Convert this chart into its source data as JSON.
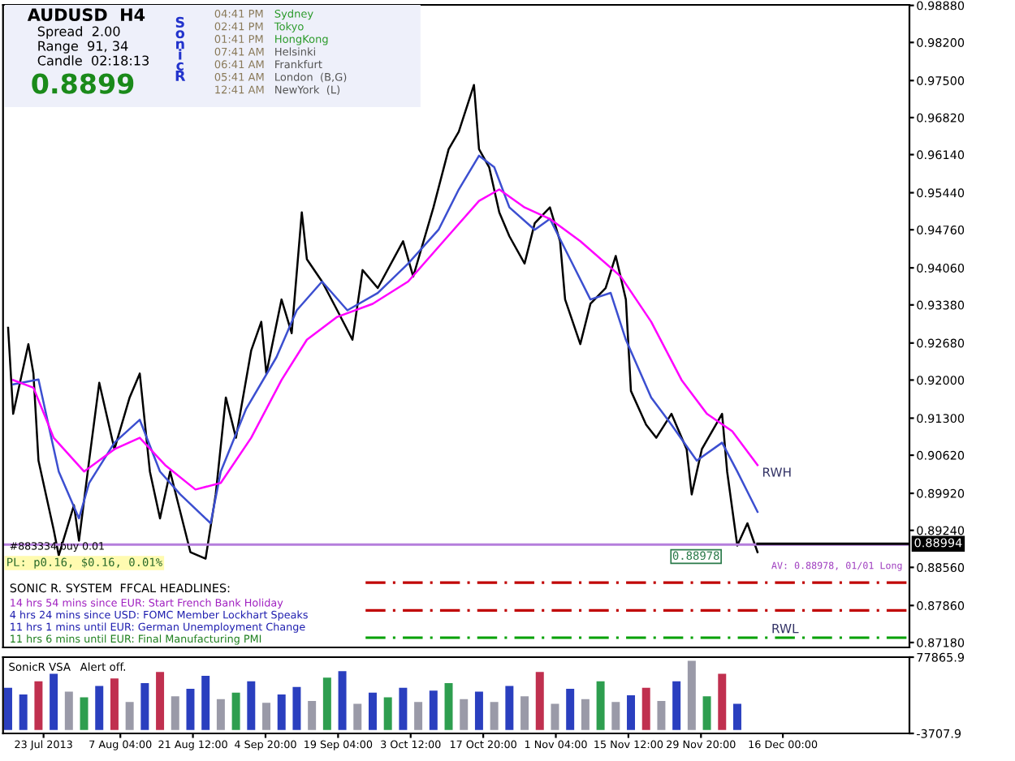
{
  "chart_data": [
    {
      "type": "line",
      "title": "AUDUSD  H4",
      "xlim": [
        "2013-07-15",
        "2014-01-10"
      ],
      "ylim": [
        0.8709,
        0.9889
      ],
      "tick_labels": "y",
      "grid": false,
      "legend": false,
      "marker": "none",
      "line_style": "solid",
      "yticks": [
        {
          "value": 0.9888,
          "label": "0.98880"
        },
        {
          "value": 0.982,
          "label": "0.98200"
        },
        {
          "value": 0.975,
          "label": "0.97500"
        },
        {
          "value": 0.9682,
          "label": "0.96820"
        },
        {
          "value": 0.9614,
          "label": "0.96140"
        },
        {
          "value": 0.9544,
          "label": "0.95440"
        },
        {
          "value": 0.9476,
          "label": "0.94760"
        },
        {
          "value": 0.9406,
          "label": "0.94060"
        },
        {
          "value": 0.9338,
          "label": "0.93380"
        },
        {
          "value": 0.9268,
          "label": "0.92680"
        },
        {
          "value": 0.92,
          "label": "0.92000"
        },
        {
          "value": 0.913,
          "label": "0.91300"
        },
        {
          "value": 0.9062,
          "label": "0.90620"
        },
        {
          "value": 0.8992,
          "label": "0.89920"
        },
        {
          "value": 0.8924,
          "label": "0.89240"
        },
        {
          "value": 0.8856,
          "label": "0.88560"
        },
        {
          "value": 0.8786,
          "label": "0.87860"
        },
        {
          "value": 0.8718,
          "label": "0.87180"
        }
      ],
      "series": [
        {
          "color": "#000000",
          "x": [
            "2013-07-16",
            "2013-07-17",
            "2013-07-20",
            "2013-07-21",
            "2013-07-22",
            "2013-07-25",
            "2013-07-26",
            "2013-07-29",
            "2013-07-30",
            "2013-08-01",
            "2013-08-03",
            "2013-08-06",
            "2013-08-09",
            "2013-08-11",
            "2013-08-13",
            "2013-08-15",
            "2013-08-17",
            "2013-08-21",
            "2013-08-24",
            "2013-08-26",
            "2013-08-28",
            "2013-08-30",
            "2013-09-02",
            "2013-09-04",
            "2013-09-05",
            "2013-09-08",
            "2013-09-10",
            "2013-09-12",
            "2013-09-13",
            "2013-09-16",
            "2013-09-19",
            "2013-09-22",
            "2013-09-24",
            "2013-09-27",
            "2013-10-02",
            "2013-10-04",
            "2013-10-08",
            "2013-10-11",
            "2013-10-13",
            "2013-10-16",
            "2013-10-17",
            "2013-10-19",
            "2013-10-21",
            "2013-10-23",
            "2013-10-26",
            "2013-10-28",
            "2013-10-31",
            "2013-11-02",
            "2013-11-03",
            "2013-11-06",
            "2013-11-08",
            "2013-11-11",
            "2013-11-13",
            "2013-11-15",
            "2013-11-16",
            "2013-11-19",
            "2013-11-21",
            "2013-11-24",
            "2013-11-27",
            "2013-11-28",
            "2013-11-30",
            "2013-12-04",
            "2013-12-05",
            "2013-12-07",
            "2013-12-09",
            "2013-12-11"
          ],
          "values": [
            0.9296,
            0.9138,
            0.9266,
            0.9212,
            0.9052,
            0.8925,
            0.8878,
            0.897,
            0.8905,
            0.9052,
            0.9195,
            0.9073,
            0.9168,
            0.9212,
            0.9032,
            0.8946,
            0.9032,
            0.8884,
            0.8872,
            0.899,
            0.9168,
            0.9094,
            0.9254,
            0.9307,
            0.9212,
            0.9348,
            0.9286,
            0.9508,
            0.9422,
            0.9381,
            0.9328,
            0.9274,
            0.9402,
            0.9369,
            0.9455,
            0.939,
            0.9517,
            0.9624,
            0.9656,
            0.9742,
            0.9624,
            0.9591,
            0.9508,
            0.9464,
            0.9414,
            0.9488,
            0.9517,
            0.9455,
            0.9348,
            0.9266,
            0.934,
            0.9369,
            0.9428,
            0.9348,
            0.918,
            0.9118,
            0.9094,
            0.9138,
            0.9073,
            0.899,
            0.9073,
            0.9138,
            0.9032,
            0.8896,
            0.8937,
            0.8884
          ]
        },
        {
          "color": "#3c4fd0",
          "x": [
            "2013-07-17",
            "2013-07-22",
            "2013-07-26",
            "2013-07-30",
            "2013-08-01",
            "2013-08-06",
            "2013-08-11",
            "2013-08-15",
            "2013-08-19",
            "2013-08-25",
            "2013-08-27",
            "2013-09-01",
            "2013-09-07",
            "2013-09-11",
            "2013-09-16",
            "2013-09-21",
            "2013-09-27",
            "2013-10-03",
            "2013-10-09",
            "2013-10-13",
            "2013-10-17",
            "2013-10-20",
            "2013-10-23",
            "2013-10-28",
            "2013-10-31",
            "2013-11-04",
            "2013-11-08",
            "2013-11-12",
            "2013-11-15",
            "2013-11-20",
            "2013-11-24",
            "2013-11-29",
            "2013-12-04",
            "2013-12-07",
            "2013-12-11"
          ],
          "values": [
            0.9192,
            0.9201,
            0.9032,
            0.8946,
            0.9011,
            0.9085,
            0.9127,
            0.9032,
            0.899,
            0.8937,
            0.9032,
            0.9147,
            0.9242,
            0.9328,
            0.9381,
            0.9328,
            0.936,
            0.9414,
            0.9476,
            0.955,
            0.9612,
            0.9591,
            0.9517,
            0.9476,
            0.9496,
            0.9422,
            0.9348,
            0.936,
            0.9274,
            0.9168,
            0.9118,
            0.9052,
            0.9085,
            0.9032,
            0.8958
          ]
        },
        {
          "color": "#ff00ff",
          "x": [
            "2013-07-17",
            "2013-07-21",
            "2013-07-25",
            "2013-07-31",
            "2013-08-06",
            "2013-08-11",
            "2013-08-16",
            "2013-08-22",
            "2013-08-27",
            "2013-09-02",
            "2013-09-08",
            "2013-09-13",
            "2013-09-19",
            "2013-09-26",
            "2013-10-03",
            "2013-10-10",
            "2013-10-17",
            "2013-10-21",
            "2013-10-26",
            "2013-10-31",
            "2013-11-06",
            "2013-11-14",
            "2013-11-20",
            "2013-11-26",
            "2013-12-01",
            "2013-12-06",
            "2013-12-11"
          ],
          "values": [
            0.92,
            0.9186,
            0.9094,
            0.9032,
            0.9073,
            0.9094,
            0.9044,
            0.8999,
            0.9011,
            0.9094,
            0.92,
            0.9274,
            0.9316,
            0.934,
            0.9381,
            0.9455,
            0.9529,
            0.955,
            0.9517,
            0.9496,
            0.9455,
            0.939,
            0.9307,
            0.92,
            0.9138,
            0.9106,
            0.9044
          ]
        }
      ],
      "ref_lines": [
        {
          "axis": "y",
          "value": 0.88978,
          "color": "#b57edc",
          "line_style": "solid"
        },
        {
          "axis": "y",
          "value": 0.88994,
          "label": "0.88994",
          "color": "#000000",
          "line_style": "solid"
        },
        {
          "axis": "y",
          "value": 0.8828,
          "color": "#c00000",
          "line_style": "dashed"
        },
        {
          "axis": "y",
          "value": 0.8777,
          "color": "#c00000",
          "line_style": "dashed"
        },
        {
          "axis": "y",
          "value": 0.8727,
          "color": "#00a000",
          "line_style": "dashed"
        }
      ],
      "annotations": [
        "Spread  2.00",
        "Range  91, 34",
        "Candle  02:18:13",
        "0.8899",
        "S\no\nn\ni\nc\nR",
        "04:41 PM",
        "02:41 PM",
        "01:41 PM",
        "07:41 AM",
        "06:41 AM",
        "05:41 AM",
        "12:41 AM",
        "Sydney",
        "Tokyo",
        "HongKong",
        "Helsinki",
        "Frankfurt",
        "London  (B,G)",
        "NewYork  (L)",
        "#883334 buy 0.01",
        "PL: p0.16, $0.16, 0.01%",
        "SONIC R. SYSTEM  FFCAL HEADLINES:",
        "14 hrs 54 mins since EUR: Start French Bank Holiday",
        "4 hrs 24 mins since USD: FOMC Member Lockhart Speaks",
        "11 hrs 1 mins until EUR: German Unemployment Change",
        "11 hrs 6 mins until EUR: Final Manufacturing PMI",
        "RWL",
        "0.88978",
        "AV: 0.88978, 01/01 Long",
        {
          "text": "RWH",
          "x": "2013-12-11",
          "y": 0.9044
        }
      ]
    },
    {
      "type": "bar",
      "title": "SonicR VSA",
      "subtitle": "Alert off.",
      "xlim": [
        "2013-07-15",
        "2014-01-10"
      ],
      "ylim": [
        -3707.9,
        77865.9
      ],
      "grid": false,
      "yticks": [
        77865.9,
        -3707.9
      ],
      "xticks": [
        {
          "value": "2013-07-23",
          "label": "23 Jul 2013"
        },
        {
          "value": "2013-08-07T04:00",
          "label": "7 Aug 04:00"
        },
        {
          "value": "2013-08-21T12:00",
          "label": "21 Aug 12:00"
        },
        {
          "value": "2013-09-04T20:00",
          "label": "4 Sep 20:00"
        },
        {
          "value": "2013-09-19T04:00",
          "label": "19 Sep 04:00"
        },
        {
          "value": "2013-10-03T12:00",
          "label": "3 Oct 12:00"
        },
        {
          "value": "2013-10-17T20:00",
          "label": "17 Oct 20:00"
        },
        {
          "value": "2013-11-01T04:00",
          "label": "1 Nov 04:00"
        },
        {
          "value": "2013-11-15T12:00",
          "label": "15 Nov 12:00"
        },
        {
          "value": "2013-11-29T20:00",
          "label": "29 Nov 20:00"
        },
        {
          "value": "2013-12-16",
          "label": "16 Dec 00:00"
        }
      ],
      "x": [
        "2013-07-16",
        "2013-07-19",
        "2013-07-22",
        "2013-07-25",
        "2013-07-28",
        "2013-07-31",
        "2013-08-03",
        "2013-08-06",
        "2013-08-09",
        "2013-08-12",
        "2013-08-15",
        "2013-08-18",
        "2013-08-21",
        "2013-08-24",
        "2013-08-27",
        "2013-08-30",
        "2013-09-02",
        "2013-09-05",
        "2013-09-08",
        "2013-09-11",
        "2013-09-14",
        "2013-09-17",
        "2013-09-20",
        "2013-09-23",
        "2013-09-26",
        "2013-09-29",
        "2013-10-02",
        "2013-10-05",
        "2013-10-08",
        "2013-10-11",
        "2013-10-14",
        "2013-10-17",
        "2013-10-20",
        "2013-10-23",
        "2013-10-26",
        "2013-10-29",
        "2013-11-01",
        "2013-11-04",
        "2013-11-07",
        "2013-11-10",
        "2013-11-13",
        "2013-11-16",
        "2013-11-19",
        "2013-11-22",
        "2013-11-25",
        "2013-11-28",
        "2013-12-01",
        "2013-12-04",
        "2013-12-07"
      ],
      "values": [
        45000,
        38000,
        52000,
        60000,
        41000,
        35000,
        47000,
        55000,
        30000,
        50000,
        62000,
        36000,
        44000,
        58000,
        33000,
        40000,
        52000,
        29000,
        38000,
        46000,
        31000,
        56000,
        63000,
        28000,
        40000,
        35000,
        45000,
        30000,
        42000,
        50000,
        33000,
        41000,
        30000,
        47000,
        36000,
        62000,
        28000,
        44000,
        33000,
        52000,
        30000,
        37000,
        45000,
        31000,
        52000,
        74000,
        36000,
        60000,
        28000
      ],
      "colors": [
        "#2a3fbf",
        "#2a3fbf",
        "#c0304f",
        "#2a3fbf",
        "#9a9aa8",
        "#2e9e4f",
        "#2a3fbf",
        "#c0304f",
        "#9a9aa8",
        "#2a3fbf",
        "#c0304f",
        "#9a9aa8",
        "#2a3fbf",
        "#2a3fbf",
        "#9a9aa8",
        "#2e9e4f",
        "#2a3fbf",
        "#9a9aa8",
        "#2a3fbf",
        "#2a3fbf",
        "#9a9aa8",
        "#2e9e4f",
        "#2a3fbf",
        "#9a9aa8",
        "#2a3fbf",
        "#2e9e4f",
        "#2a3fbf",
        "#9a9aa8",
        "#2a3fbf",
        "#2e9e4f",
        "#9a9aa8",
        "#2a3fbf",
        "#9a9aa8",
        "#2a3fbf",
        "#9a9aa8",
        "#c0304f",
        "#9a9aa8",
        "#2a3fbf",
        "#9a9aa8",
        "#2e9e4f",
        "#9a9aa8",
        "#2a3fbf",
        "#c0304f",
        "#9a9aa8",
        "#2a3fbf",
        "#9a9aa8",
        "#2e9e4f",
        "#c0304f",
        "#2a3fbf"
      ]
    }
  ]
}
